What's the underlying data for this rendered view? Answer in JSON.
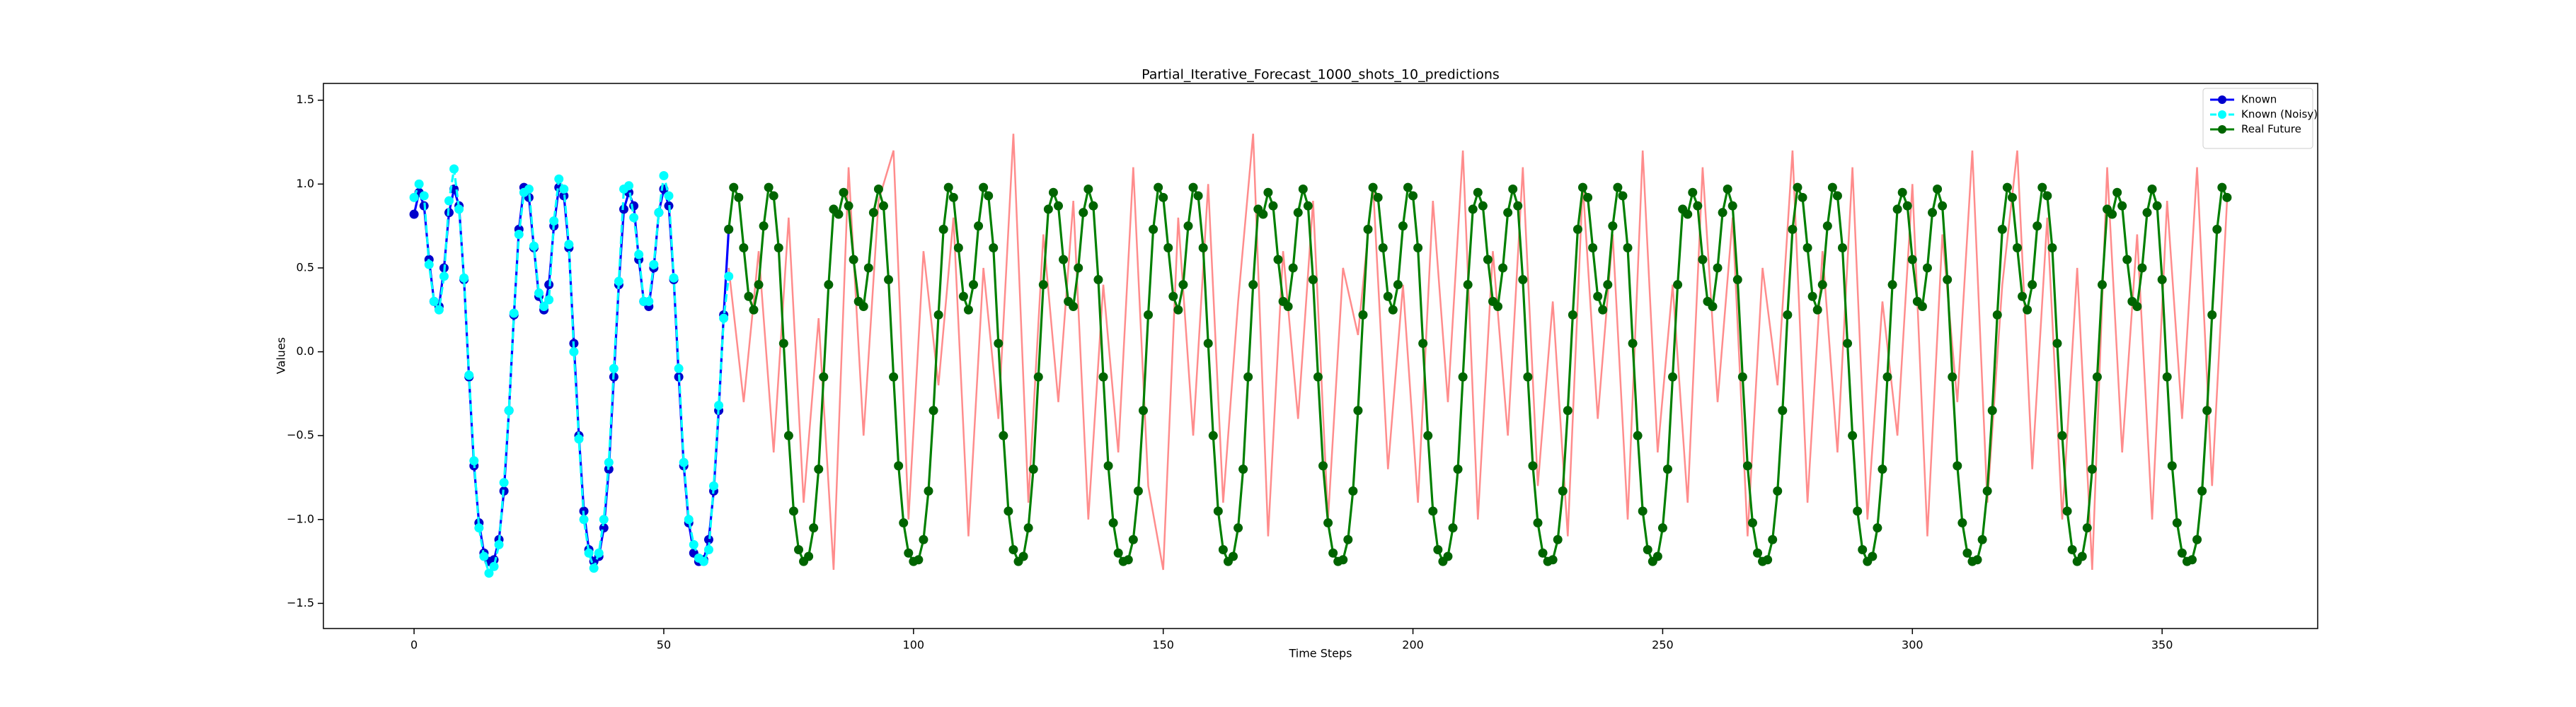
{
  "chart_data": {
    "type": "line",
    "title": "Partial_Iterative_Forecast_1000_shots_10_predictions",
    "xlabel": "Time Steps",
    "ylabel": "Values",
    "xlim": [
      -18.15,
      381.15
    ],
    "ylim": [
      -1.65,
      1.6
    ],
    "xticks": [
      0,
      50,
      100,
      150,
      200,
      250,
      300,
      350
    ],
    "yticks": [
      {
        "value": -1.5,
        "label": "−1.5"
      },
      {
        "value": -1.0,
        "label": "−1.0"
      },
      {
        "value": -0.5,
        "label": "−0.5"
      },
      {
        "value": 0,
        "label": "0.0"
      },
      0.5,
      {
        "value": 1.0,
        "label": "1.0"
      },
      1.5
    ],
    "legend": "upper right",
    "predictions": {
      "color": "#ff0000",
      "x": [
        63,
        66,
        69,
        72,
        75,
        78,
        81,
        84,
        87,
        90,
        93,
        96,
        99,
        102,
        105,
        108,
        111,
        114,
        117,
        120,
        123,
        126,
        129,
        132,
        135,
        138,
        141,
        144,
        147,
        150,
        153,
        156,
        159,
        162,
        165,
        168,
        171,
        174,
        177,
        180,
        183,
        186,
        189,
        192,
        195,
        198,
        201,
        204,
        207,
        210,
        213,
        216,
        219,
        222,
        225,
        228,
        231,
        234,
        237,
        240,
        243,
        246,
        249,
        252,
        255,
        258,
        261,
        264,
        267,
        270,
        273,
        276,
        279,
        282,
        285,
        288,
        291,
        294,
        297,
        300,
        303,
        306,
        309,
        312,
        315,
        318,
        321,
        324,
        327,
        330,
        333,
        336,
        339,
        342,
        345,
        348,
        351,
        354,
        357,
        360,
        363
      ],
      "values": [
        0.5,
        -0.3,
        0.6,
        -0.6,
        0.8,
        -0.9,
        0.2,
        -1.3,
        1.1,
        -0.5,
        0.9,
        1.2,
        -1.0,
        0.6,
        -0.2,
        0.8,
        -1.1,
        0.5,
        -0.4,
        1.3,
        -0.9,
        0.7,
        -0.3,
        0.9,
        -1.0,
        0.4,
        -0.6,
        1.1,
        -0.8,
        -1.3,
        0.8,
        -0.5,
        1.0,
        -0.9,
        0.3,
        1.3,
        -1.1,
        0.6,
        -0.4,
        0.9,
        -1.0,
        0.5,
        0.1,
        1.0,
        -0.7,
        0.4,
        -0.9,
        0.9,
        -0.3,
        1.2,
        -1.0,
        0.6,
        -0.5,
        1.1,
        -0.8,
        0.3,
        -1.1,
        1.0,
        -0.4,
        0.7,
        -1.0,
        1.2,
        -0.6,
        0.4,
        -0.9,
        1.1,
        -0.3,
        0.8,
        -1.1,
        0.5,
        -0.2,
        1.2,
        -0.9,
        0.6,
        -0.6,
        1.1,
        -1.0,
        0.3,
        -0.5,
        1.0,
        -1.1,
        0.7,
        -0.3,
        1.2,
        -0.9,
        0.4,
        1.2,
        -0.7,
        0.8,
        -1.0,
        0.5,
        -1.3,
        1.1,
        -0.6,
        0.7,
        -1.0,
        0.9,
        -0.4,
        1.1,
        -0.8,
        0.9
      ]
    },
    "series": [
      {
        "name": "Known",
        "color": "#0000ff",
        "marker_color": "#0000cc",
        "x": [
          0,
          1,
          2,
          3,
          4,
          5,
          6,
          7,
          8,
          9,
          10,
          11,
          12,
          13,
          14,
          15,
          16,
          17,
          18,
          19,
          20,
          21,
          22,
          23,
          24,
          25,
          26,
          27,
          28,
          29,
          30,
          31,
          32,
          33,
          34,
          35,
          36,
          37,
          38,
          39,
          40,
          41,
          42,
          43,
          44,
          45,
          46,
          47,
          48,
          49,
          50,
          51,
          52,
          53,
          54,
          55,
          56,
          57,
          58,
          59,
          60,
          61,
          62,
          63
        ],
        "values": [
          0.82,
          0.95,
          0.87,
          0.55,
          0.3,
          0.27,
          0.5,
          0.83,
          0.97,
          0.87,
          0.43,
          -0.15,
          -0.68,
          -1.02,
          -1.2,
          -1.25,
          -1.24,
          -1.12,
          -0.83,
          -0.35,
          0.22,
          0.73,
          0.98,
          0.92,
          0.62,
          0.33,
          0.25,
          0.4,
          0.75,
          0.98,
          0.93,
          0.62,
          0.05,
          -0.5,
          -0.95,
          -1.18,
          -1.25,
          -1.22,
          -1.05,
          -0.7,
          -0.15,
          0.4,
          0.85,
          0.95,
          0.87,
          0.55,
          0.3,
          0.27,
          0.5,
          0.83,
          0.97,
          0.87,
          0.43,
          -0.15,
          -0.68,
          -1.02,
          -1.2,
          -1.25,
          -1.24,
          -1.12,
          -0.83,
          -0.35,
          0.22,
          0.73
        ]
      },
      {
        "name": "Known (Noisy)",
        "color": "#00ffff",
        "marker_color": "#00ffff",
        "dashed": true,
        "x": [
          0,
          1,
          2,
          3,
          4,
          5,
          6,
          7,
          8,
          9,
          10,
          11,
          12,
          13,
          14,
          15,
          16,
          17,
          18,
          19,
          20,
          21,
          22,
          23,
          24,
          25,
          26,
          27,
          28,
          29,
          30,
          31,
          32,
          33,
          34,
          35,
          36,
          37,
          38,
          39,
          40,
          41,
          42,
          43,
          44,
          45,
          46,
          47,
          48,
          49,
          50,
          51,
          52,
          53,
          54,
          55,
          56,
          57,
          58,
          59,
          60,
          61,
          62,
          63
        ],
        "values": [
          0.92,
          1.0,
          0.93,
          0.52,
          0.3,
          0.25,
          0.45,
          0.9,
          1.09,
          0.85,
          0.44,
          -0.14,
          -0.65,
          -1.05,
          -1.22,
          -1.32,
          -1.28,
          -1.15,
          -0.78,
          -0.35,
          0.23,
          0.7,
          0.95,
          0.97,
          0.63,
          0.35,
          0.27,
          0.31,
          0.78,
          1.03,
          0.97,
          0.64,
          0,
          -0.52,
          -1.0,
          -1.2,
          -1.29,
          -1.2,
          -1.0,
          -0.66,
          -0.1,
          0.42,
          0.97,
          0.99,
          0.8,
          0.58,
          0.3,
          0.3,
          0.52,
          0.83,
          1.05,
          0.93,
          0.44,
          -0.1,
          -0.66,
          -1.0,
          -1.15,
          -1.23,
          -1.25,
          -1.18,
          -0.8,
          -0.32,
          0.2,
          0.45
        ]
      },
      {
        "name": "Real Future",
        "color": "#008000",
        "marker_color": "#006400",
        "x": [
          63,
          64,
          65,
          66,
          67,
          68,
          69,
          70,
          71,
          72,
          73,
          74,
          75,
          76,
          77,
          78,
          79,
          80,
          81,
          82,
          83,
          84,
          85,
          86,
          87,
          88,
          89,
          90,
          91,
          92,
          93,
          94,
          95,
          96,
          97,
          98,
          99,
          100,
          101,
          102,
          103,
          104,
          105,
          106,
          107,
          108,
          109,
          110,
          111,
          112,
          113,
          114,
          115,
          116,
          117,
          118,
          119,
          120,
          121,
          122,
          123,
          124,
          125,
          126,
          127,
          128,
          129,
          130,
          131,
          132,
          133,
          134,
          135,
          136,
          137,
          138,
          139,
          140,
          141,
          142,
          143,
          144,
          145,
          146,
          147,
          148,
          149,
          150,
          151,
          152,
          153,
          154,
          155,
          156,
          157,
          158,
          159,
          160,
          161,
          162,
          163,
          164,
          165,
          166,
          167,
          168,
          169,
          170,
          171,
          172,
          173,
          174,
          175,
          176,
          177,
          178,
          179,
          180,
          181,
          182,
          183,
          184,
          185,
          186,
          187,
          188,
          189,
          190,
          191,
          192,
          193,
          194,
          195,
          196,
          197,
          198,
          199,
          200,
          201,
          202,
          203,
          204,
          205,
          206,
          207,
          208,
          209,
          210,
          211,
          212,
          213,
          214,
          215,
          216,
          217,
          218,
          219,
          220,
          221,
          222,
          223,
          224,
          225,
          226,
          227,
          228,
          229,
          230,
          231,
          232,
          233,
          234,
          235,
          236,
          237,
          238,
          239,
          240,
          241,
          242,
          243,
          244,
          245,
          246,
          247,
          248,
          249,
          250,
          251,
          252,
          253,
          254,
          255,
          256,
          257,
          258,
          259,
          260,
          261,
          262,
          263,
          264,
          265,
          266,
          267,
          268,
          269,
          270,
          271,
          272,
          273,
          274,
          275,
          276,
          277,
          278,
          279,
          280,
          281,
          282,
          283,
          284,
          285,
          286,
          287,
          288,
          289,
          290,
          291,
          292,
          293,
          294,
          295,
          296,
          297,
          298,
          299,
          300,
          301,
          302,
          303,
          304,
          305,
          306,
          307,
          308,
          309,
          310,
          311,
          312,
          313,
          314,
          315,
          316,
          317,
          318,
          319,
          320,
          321,
          322,
          323,
          324,
          325,
          326,
          327,
          328,
          329,
          330,
          331,
          332,
          333,
          334,
          335,
          336,
          337,
          338,
          339,
          340,
          341,
          342,
          343,
          344,
          345,
          346,
          347,
          348,
          349,
          350,
          351,
          352,
          353,
          354,
          355,
          356,
          357,
          358,
          359,
          360,
          361,
          362,
          363
        ],
        "values": [
          0.73,
          0.98,
          0.92,
          0.62,
          0.33,
          0.25,
          0.4,
          0.75,
          0.98,
          0.93,
          0.62,
          0.05,
          -0.5,
          -0.95,
          -1.18,
          -1.25,
          -1.22,
          -1.05,
          -0.7,
          -0.15,
          0.4,
          0.85,
          0.82,
          0.95,
          0.87,
          0.55,
          0.3,
          0.27,
          0.5,
          0.83,
          0.97,
          0.87,
          0.43,
          -0.15,
          -0.68,
          -1.02,
          -1.2,
          -1.25,
          -1.24,
          -1.12,
          -0.83,
          -0.35,
          0.22,
          0.73,
          0.98,
          0.92,
          0.62,
          0.33,
          0.25,
          0.4,
          0.75,
          0.98,
          0.93,
          0.62,
          0.05,
          -0.5,
          -0.95,
          -1.18,
          -1.25,
          -1.22,
          -1.05,
          -0.7,
          -0.15,
          0.4,
          0.85,
          0.95,
          0.87,
          0.55,
          0.3,
          0.27,
          0.5,
          0.83,
          0.97,
          0.87,
          0.43,
          -0.15,
          -0.68,
          -1.02,
          -1.2,
          -1.25,
          -1.24,
          -1.12,
          -0.83,
          -0.35,
          0.22,
          0.73,
          0.98,
          0.92,
          0.62,
          0.33,
          0.25,
          0.4,
          0.75,
          0.98,
          0.93,
          0.62,
          0.05,
          -0.5,
          -0.95,
          -1.18,
          -1.25,
          -1.22,
          -1.05,
          -0.7,
          -0.15,
          0.4,
          0.85,
          0.82,
          0.95,
          0.87,
          0.55,
          0.3,
          0.27,
          0.5,
          0.83,
          0.97,
          0.87,
          0.43,
          -0.15,
          -0.68,
          -1.02,
          -1.2,
          -1.25,
          -1.24,
          -1.12,
          -0.83,
          -0.35,
          0.22,
          0.73,
          0.98,
          0.92,
          0.62,
          0.33,
          0.25,
          0.4,
          0.75,
          0.98,
          0.93,
          0.62,
          0.05,
          -0.5,
          -0.95,
          -1.18,
          -1.25,
          -1.22,
          -1.05,
          -0.7,
          -0.15,
          0.4,
          0.85,
          0.95,
          0.87,
          0.55,
          0.3,
          0.27,
          0.5,
          0.83,
          0.97,
          0.87,
          0.43,
          -0.15,
          -0.68,
          -1.02,
          -1.2,
          -1.25,
          -1.24,
          -1.12,
          -0.83,
          -0.35,
          0.22,
          0.73,
          0.98,
          0.92,
          0.62,
          0.33,
          0.25,
          0.4,
          0.75,
          0.98,
          0.93,
          0.62,
          0.05,
          -0.5,
          -0.95,
          -1.18,
          -1.25,
          -1.22,
          -1.05,
          -0.7,
          -0.15,
          0.4,
          0.85,
          0.82,
          0.95,
          0.87,
          0.55,
          0.3,
          0.27,
          0.5,
          0.83,
          0.97,
          0.87,
          0.43,
          -0.15,
          -0.68,
          -1.02,
          -1.2,
          -1.25,
          -1.24,
          -1.12,
          -0.83,
          -0.35,
          0.22,
          0.73,
          0.98,
          0.92,
          0.62,
          0.33,
          0.25,
          0.4,
          0.75,
          0.98,
          0.93,
          0.62,
          0.05,
          -0.5,
          -0.95,
          -1.18,
          -1.25,
          -1.22,
          -1.05,
          -0.7,
          -0.15,
          0.4,
          0.85,
          0.95,
          0.87,
          0.55,
          0.3,
          0.27,
          0.5,
          0.83,
          0.97,
          0.87,
          0.43,
          -0.15,
          -0.68,
          -1.02,
          -1.2,
          -1.25,
          -1.24,
          -1.12,
          -0.83,
          -0.35,
          0.22,
          0.73,
          0.98,
          0.92,
          0.62,
          0.33,
          0.25,
          0.4,
          0.75,
          0.98,
          0.93,
          0.62,
          0.05,
          -0.5,
          -0.95,
          -1.18,
          -1.25,
          -1.22,
          -1.05,
          -0.7,
          -0.15,
          0.4,
          0.85,
          0.82,
          0.95,
          0.87,
          0.55,
          0.3,
          0.27,
          0.5,
          0.83,
          0.97,
          0.87,
          0.43,
          -0.15,
          -0.68,
          -1.02,
          -1.2,
          -1.25,
          -1.24,
          -1.12,
          -0.83,
          -0.35,
          0.22,
          0.73,
          0.98,
          0.92
        ]
      }
    ]
  }
}
